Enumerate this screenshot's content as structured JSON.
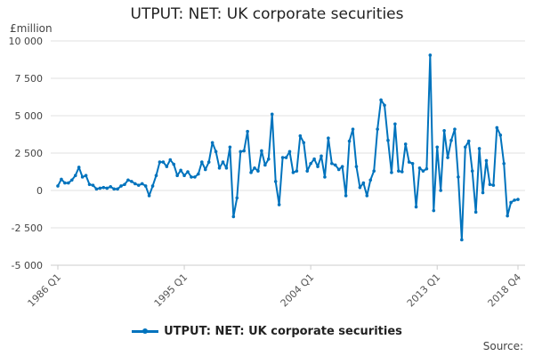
{
  "chart_data": {
    "type": "line",
    "title": "UTPUT: NET: UK corporate securities",
    "ylabel": "£million",
    "ylim": [
      -5000,
      10000
    ],
    "yticks": [
      -5000,
      -2500,
      0,
      2500,
      5000,
      7500,
      10000
    ],
    "ytick_labels": [
      "-5 000",
      "-2 500",
      "0",
      "2 500",
      "5 000",
      "7 500",
      "10 000"
    ],
    "xtick_labels": [
      "1986 Q1",
      "1995 Q1",
      "2004 Q1",
      "2013 Q1",
      "2018 Q4"
    ],
    "x_start": "1986 Q1",
    "x_end": "2018 Q4",
    "frequency": "quarterly",
    "grid": true,
    "legend_placement": "bottom",
    "color": "#0073bd",
    "series": [
      {
        "name": "UTPUT: NET: UK corporate securities",
        "values": [
          300,
          750,
          500,
          500,
          700,
          1000,
          1550,
          900,
          1000,
          400,
          350,
          100,
          150,
          200,
          150,
          250,
          100,
          100,
          300,
          400,
          700,
          600,
          450,
          350,
          450,
          300,
          -350,
          300,
          1000,
          1900,
          1900,
          1600,
          2050,
          1750,
          1000,
          1350,
          1000,
          1250,
          900,
          900,
          1100,
          1900,
          1400,
          1900,
          3200,
          2600,
          1500,
          1900,
          1500,
          2900,
          -1750,
          -500,
          2600,
          2650,
          3950,
          1200,
          1500,
          1300,
          2650,
          1700,
          2100,
          5100,
          600,
          -950,
          2200,
          2200,
          2600,
          1200,
          1300,
          3650,
          3200,
          1300,
          1800,
          2100,
          1600,
          2300,
          900,
          3500,
          1800,
          1700,
          1400,
          1600,
          -350,
          3300,
          4100,
          1600,
          200,
          500,
          -350,
          700,
          1300,
          4100,
          6050,
          5700,
          3350,
          1200,
          4450,
          1300,
          1250,
          3100,
          1900,
          1800,
          -1100,
          1500,
          1300,
          1450,
          9050,
          -1350,
          2900,
          0,
          4000,
          2200,
          3350,
          4100,
          900,
          -3300,
          2900,
          3300,
          1300,
          -1450,
          2800,
          -150,
          2000,
          400,
          350,
          4200,
          3700,
          1800,
          -1700,
          -800,
          -650,
          -600
        ]
      }
    ]
  },
  "footer": {
    "source": "Source:"
  }
}
